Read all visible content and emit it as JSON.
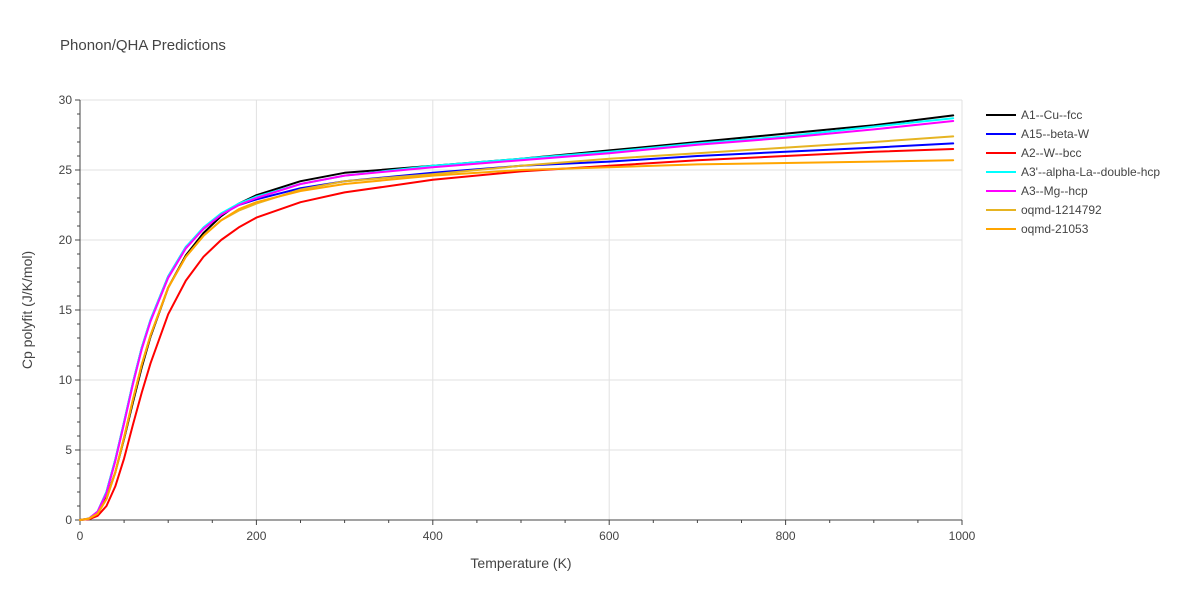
{
  "chart_data": {
    "type": "line",
    "title": "Phonon/QHA Predictions",
    "xlabel": "Temperature (K)",
    "ylabel": "Cp polyfit (J/K/mol)",
    "xlim": [
      0,
      1000
    ],
    "ylim": [
      0,
      30
    ],
    "x_ticks": [
      0,
      200,
      400,
      600,
      800,
      1000
    ],
    "y_ticks": [
      0,
      5,
      10,
      15,
      20,
      25,
      30
    ],
    "grid": true,
    "legend_position": "right",
    "series": [
      {
        "name": "A1--Cu--fcc",
        "color": "#000000",
        "x": [
          0,
          10,
          20,
          30,
          40,
          50,
          60,
          70,
          80,
          100,
          120,
          140,
          160,
          180,
          200,
          250,
          300,
          400,
          500,
          600,
          700,
          800,
          900,
          990
        ],
        "y": [
          0,
          0.1,
          0.5,
          1.6,
          3.4,
          5.8,
          8.4,
          10.9,
          13.1,
          16.6,
          18.9,
          20.5,
          21.7,
          22.6,
          23.2,
          24.2,
          24.8,
          25.3,
          25.8,
          26.4,
          27.0,
          27.6,
          28.2,
          28.9
        ]
      },
      {
        "name": "A15--beta-W",
        "color": "#0000ff",
        "x": [
          0,
          10,
          20,
          30,
          40,
          50,
          60,
          70,
          80,
          100,
          120,
          140,
          160,
          180,
          200,
          250,
          300,
          400,
          500,
          600,
          700,
          800,
          900,
          990
        ],
        "y": [
          0,
          0.1,
          0.6,
          2.0,
          4.3,
          7.0,
          9.8,
          12.3,
          14.3,
          17.4,
          19.5,
          20.8,
          21.8,
          22.5,
          22.9,
          23.7,
          24.2,
          24.8,
          25.3,
          25.6,
          26.0,
          26.3,
          26.6,
          26.9
        ]
      },
      {
        "name": "A2--W--bcc",
        "color": "#ff0000",
        "x": [
          0,
          10,
          20,
          30,
          40,
          50,
          60,
          70,
          80,
          100,
          120,
          140,
          160,
          180,
          200,
          250,
          300,
          400,
          500,
          600,
          700,
          800,
          900,
          990
        ],
        "y": [
          0,
          0.05,
          0.3,
          1.0,
          2.4,
          4.4,
          6.8,
          9.1,
          11.2,
          14.7,
          17.1,
          18.8,
          20.0,
          20.9,
          21.6,
          22.7,
          23.4,
          24.3,
          24.9,
          25.3,
          25.7,
          26.0,
          26.3,
          26.5
        ]
      },
      {
        "name": "A3'--alpha-La--double-hcp",
        "color": "#00ffff",
        "x": [
          0,
          10,
          20,
          30,
          40,
          50,
          60,
          70,
          80,
          100,
          120,
          140,
          160,
          180,
          200,
          250,
          300,
          400,
          500,
          600,
          700,
          800,
          900,
          990
        ],
        "y": [
          0,
          0.1,
          0.6,
          2.0,
          4.3,
          7.0,
          9.8,
          12.3,
          14.3,
          17.4,
          19.5,
          20.9,
          21.9,
          22.6,
          23.1,
          24.0,
          24.6,
          25.3,
          25.8,
          26.3,
          26.9,
          27.4,
          28.1,
          28.7
        ]
      },
      {
        "name": "A3--Mg--hcp",
        "color": "#ff00ff",
        "x": [
          0,
          10,
          20,
          30,
          40,
          50,
          60,
          70,
          80,
          100,
          120,
          140,
          160,
          180,
          200,
          250,
          300,
          400,
          500,
          600,
          700,
          800,
          900,
          990
        ],
        "y": [
          0,
          0.1,
          0.6,
          1.9,
          4.2,
          6.9,
          9.7,
          12.2,
          14.2,
          17.3,
          19.4,
          20.8,
          21.8,
          22.5,
          23.0,
          24.0,
          24.6,
          25.2,
          25.7,
          26.2,
          26.8,
          27.3,
          27.9,
          28.5
        ]
      },
      {
        "name": "oqmd-1214792",
        "color": "#e6b422",
        "x": [
          0,
          10,
          20,
          30,
          40,
          50,
          60,
          70,
          80,
          100,
          120,
          140,
          160,
          180,
          200,
          250,
          300,
          400,
          500,
          600,
          700,
          800,
          900,
          990
        ],
        "y": [
          0,
          0.1,
          0.45,
          1.5,
          3.4,
          5.9,
          8.6,
          11.1,
          13.2,
          16.6,
          18.8,
          20.3,
          21.4,
          22.1,
          22.6,
          23.6,
          24.2,
          24.7,
          25.3,
          25.8,
          26.2,
          26.6,
          27.0,
          27.4
        ]
      },
      {
        "name": "oqmd-21053",
        "color": "#ffa500",
        "x": [
          0,
          10,
          20,
          30,
          40,
          50,
          60,
          70,
          80,
          100,
          120,
          140,
          160,
          180,
          200,
          250,
          300,
          400,
          500,
          600,
          700,
          800,
          900,
          990
        ],
        "y": [
          0,
          0.1,
          0.45,
          1.5,
          3.4,
          5.9,
          8.6,
          11.1,
          13.2,
          16.6,
          18.8,
          20.3,
          21.4,
          22.2,
          22.7,
          23.5,
          24.0,
          24.6,
          25.0,
          25.2,
          25.4,
          25.5,
          25.6,
          25.7
        ]
      }
    ]
  }
}
